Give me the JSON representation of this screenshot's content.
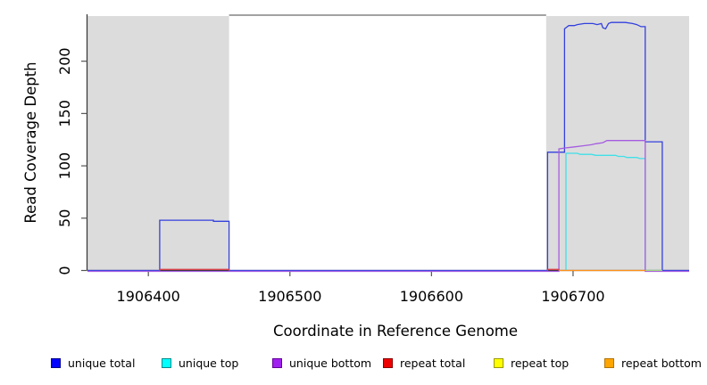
{
  "chart_data": {
    "type": "line",
    "title": "",
    "xlabel": "Coordinate in Reference Genome",
    "ylabel": "Read Coverage Depth",
    "xlim": [
      1906357,
      1906782
    ],
    "ylim": [
      0,
      244
    ],
    "x_ticks": [
      1906400,
      1906500,
      1906600,
      1906700
    ],
    "y_ticks": [
      0,
      50,
      100,
      150,
      200
    ],
    "grid": false,
    "legend_position": "bottom",
    "shaded_regions": [
      {
        "name": "repeat-region-1",
        "from": 1906357,
        "to": 1906457,
        "color": "#dcdcdc"
      },
      {
        "name": "repeat-region-2",
        "from": 1906681,
        "to": 1906782,
        "color": "#dcdcdc"
      }
    ],
    "series": [
      {
        "id": "unique-total",
        "name": "unique total",
        "color": "#3340dd",
        "legend_color": "#0000ff",
        "legend_border": "#00008b",
        "segments": [
          [
            [
              1906357,
              0
            ],
            [
              1906408,
              0
            ],
            [
              1906408,
              48
            ],
            [
              1906446,
              48
            ],
            [
              1906446,
              47
            ],
            [
              1906457,
              47
            ],
            [
              1906457,
              0
            ],
            [
              1906682,
              0
            ],
            [
              1906682,
              113
            ],
            [
              1906694,
              113
            ],
            [
              1906694,
              231
            ],
            [
              1906697,
              234
            ],
            [
              1906701,
              234
            ],
            [
              1906703,
              235
            ],
            [
              1906708,
              236
            ],
            [
              1906714,
              236
            ],
            [
              1906717,
              235
            ],
            [
              1906720,
              236
            ],
            [
              1906721,
              232
            ],
            [
              1906723,
              231
            ],
            [
              1906725,
              236
            ],
            [
              1906727,
              237
            ],
            [
              1906737,
              237
            ],
            [
              1906742,
              236
            ],
            [
              1906745,
              235
            ],
            [
              1906748,
              233
            ],
            [
              1906751,
              233
            ],
            [
              1906751,
              123
            ],
            [
              1906763,
              123
            ],
            [
              1906763,
              0
            ],
            [
              1906782,
              0
            ]
          ]
        ]
      },
      {
        "id": "unique-top",
        "name": "unique top",
        "color": "#3fdfe8",
        "legend_color": "#00ffff",
        "legend_border": "#008b8b",
        "segments": [
          [
            [
              1906695,
              0
            ],
            [
              1906695,
              112
            ],
            [
              1906703,
              112
            ],
            [
              1906705,
              111
            ],
            [
              1906713,
              111
            ],
            [
              1906716,
              110
            ],
            [
              1906730,
              110
            ],
            [
              1906732,
              109
            ],
            [
              1906736,
              109
            ],
            [
              1906738,
              108
            ],
            [
              1906745,
              108
            ],
            [
              1906747,
              107
            ],
            [
              1906751,
              107
            ],
            [
              1906751,
              0
            ],
            [
              1906763,
              0
            ]
          ]
        ]
      },
      {
        "id": "unique-bottom",
        "name": "unique bottom",
        "color": "#a55ce0",
        "legend_color": "#a020f0",
        "legend_border": "#66009c",
        "dy": 1,
        "segments": [
          [
            [
              1906357,
              0
            ],
            [
              1906690,
              0
            ],
            [
              1906690,
              117
            ],
            [
              1906695,
              118
            ],
            [
              1906701,
              119
            ],
            [
              1906707,
              120
            ],
            [
              1906713,
              121
            ],
            [
              1906716,
              122
            ],
            [
              1906721,
              123
            ],
            [
              1906724,
              125
            ],
            [
              1906751,
              125
            ],
            [
              1906751,
              0
            ],
            [
              1906782,
              0
            ]
          ]
        ]
      },
      {
        "id": "repeat-total",
        "name": "repeat total",
        "color": "#d8404a",
        "legend_color": "#ee0000",
        "legend_border": "#8b0000",
        "segments": [
          [
            [
              1906408,
              0
            ],
            [
              1906408,
              1
            ],
            [
              1906457,
              1
            ],
            [
              1906457,
              0
            ]
          ],
          [
            [
              1906682,
              0
            ],
            [
              1906682,
              1
            ],
            [
              1906690,
              1
            ],
            [
              1906690,
              0
            ]
          ]
        ]
      },
      {
        "id": "repeat-top",
        "name": "repeat top",
        "color": "#e8e030",
        "legend_color": "#ffff00",
        "legend_border": "#9a9a00",
        "opacity": 0.55,
        "segments": [
          [
            [
              1906751,
              0
            ],
            [
              1906763,
              0
            ]
          ]
        ]
      },
      {
        "id": "repeat-bottom",
        "name": "repeat bottom",
        "color": "#ff9018",
        "legend_color": "#ffa500",
        "legend_border": "#b37400",
        "segments": [
          [
            [
              1906690,
              0
            ],
            [
              1906751,
              0
            ]
          ]
        ]
      }
    ]
  }
}
